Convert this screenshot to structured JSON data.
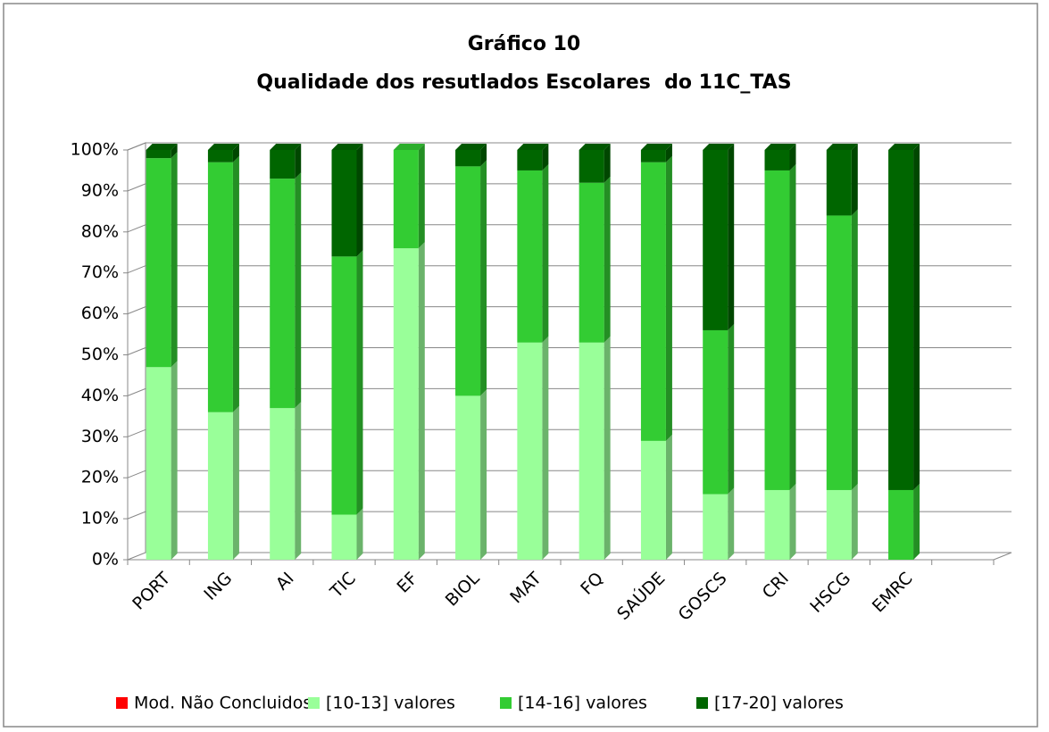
{
  "chart_data": {
    "type": "stacked_bar_3d",
    "title": "Gráfico 10",
    "subtitle": "Qualidade dos resutlados Escolares  do 11C_TAS",
    "categories": [
      "PORT",
      "ING",
      "AI",
      "TIC",
      "EF",
      "BIOL",
      "MAT",
      "FQ",
      "SAÚDE",
      "GOSCS",
      "CRI",
      "HSCG",
      "EMRC"
    ],
    "series": [
      {
        "name": "Mod. Não Concluidos",
        "color": "#ff0000",
        "values": [
          0,
          0,
          0,
          0,
          0,
          0,
          0,
          0,
          0,
          0,
          0,
          0,
          0
        ]
      },
      {
        "name": "[10-13] valores",
        "color": "#99ff99",
        "values": [
          47,
          36,
          37,
          11,
          76,
          40,
          53,
          53,
          29,
          16,
          17,
          17,
          0
        ]
      },
      {
        "name": "[14-16] valores",
        "color": "#33cc33",
        "values": [
          51,
          61,
          56,
          63,
          24,
          56,
          42,
          39,
          68,
          40,
          78,
          67,
          17
        ]
      },
      {
        "name": "[17-20] valores",
        "color": "#006600",
        "values": [
          2,
          3,
          7,
          26,
          0,
          4,
          5,
          8,
          3,
          44,
          5,
          16,
          83
        ]
      }
    ],
    "ylim": [
      0,
      100
    ],
    "yticks": [
      {
        "value": 0,
        "label": "0%"
      },
      {
        "value": 10,
        "label": "10%"
      },
      {
        "value": 20,
        "label": "20%"
      },
      {
        "value": 30,
        "label": "30%"
      },
      {
        "value": 40,
        "label": "40%"
      },
      {
        "value": 50,
        "label": "50%"
      },
      {
        "value": 60,
        "label": "60%"
      },
      {
        "value": 70,
        "label": "70%"
      },
      {
        "value": 80,
        "label": "80%"
      },
      {
        "value": 90,
        "label": "90%"
      },
      {
        "value": 100,
        "label": "100%"
      }
    ],
    "grid": true,
    "legend": "bottom"
  }
}
